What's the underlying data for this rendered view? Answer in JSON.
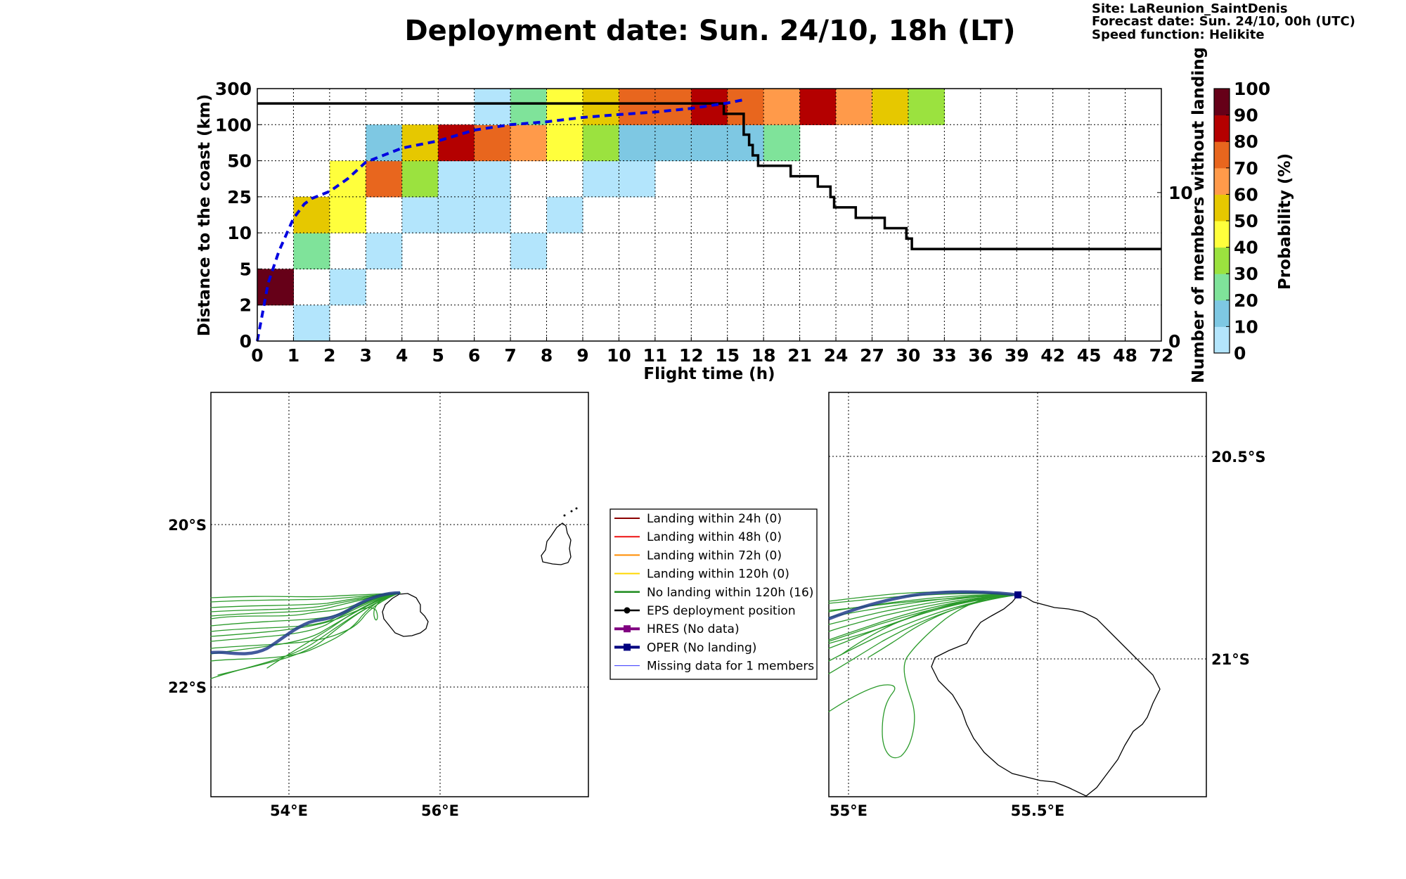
{
  "header": {
    "title": "Deployment date: Sun. 24/10, 18h (LT)",
    "info": [
      "Site: LaReunion_SaintDenis",
      "Forecast date: Sun. 24/10, 00h (UTC)",
      "Speed function: Helikite"
    ]
  },
  "chart_data": [
    {
      "type": "heatmap",
      "xlabel": "Flight time (h)",
      "ylabel": "Distance to the coast (km)",
      "y2label": "Number of members without landing",
      "x_ticks": [
        "0",
        "1",
        "2",
        "3",
        "4",
        "5",
        "6",
        "7",
        "8",
        "9",
        "10",
        "11",
        "12",
        "15",
        "18",
        "21",
        "24",
        "27",
        "30",
        "33",
        "36",
        "39",
        "42",
        "45",
        "48",
        "72"
      ],
      "y_ticks": [
        "0",
        "2",
        "5",
        "10",
        "25",
        "50",
        "100",
        "300"
      ],
      "y2_ticks": [
        "0",
        "10"
      ],
      "y2_range": [
        0,
        17
      ],
      "grid": true,
      "colorbar": {
        "label": "Probability (%)",
        "ticks": [
          "0",
          "10",
          "20",
          "30",
          "40",
          "50",
          "60",
          "70",
          "80",
          "90",
          "100"
        ],
        "colors": [
          "#b3e5fc",
          "#7ec8e3",
          "#7fe39a",
          "#9be23f",
          "#ffff3c",
          "#e6c800",
          "#ff9a4a",
          "#e8661e",
          "#b40000",
          "#660018"
        ]
      },
      "cells": [
        {
          "t": 0,
          "d": 1,
          "p": 95
        },
        {
          "t": 1,
          "d": 0,
          "p": 5
        },
        {
          "t": 1,
          "d": 2,
          "p": 25
        },
        {
          "t": 1,
          "d": 3,
          "p": 55
        },
        {
          "t": 2,
          "d": 1,
          "p": 5
        },
        {
          "t": 2,
          "d": 3,
          "p": 45
        },
        {
          "t": 2,
          "d": 4,
          "p": 45
        },
        {
          "t": 3,
          "d": 2,
          "p": 5
        },
        {
          "t": 3,
          "d": 4,
          "p": 75
        },
        {
          "t": 3,
          "d": 5,
          "p": 15
        },
        {
          "t": 4,
          "d": 3,
          "p": 5
        },
        {
          "t": 4,
          "d": 4,
          "p": 35
        },
        {
          "t": 4,
          "d": 5,
          "p": 55
        },
        {
          "t": 5,
          "d": 3,
          "p": 5
        },
        {
          "t": 5,
          "d": 4,
          "p": 5
        },
        {
          "t": 5,
          "d": 5,
          "p": 85
        },
        {
          "t": 6,
          "d": 3,
          "p": 5
        },
        {
          "t": 6,
          "d": 4,
          "p": 5
        },
        {
          "t": 6,
          "d": 5,
          "p": 75
        },
        {
          "t": 6,
          "d": 6,
          "p": 5
        },
        {
          "t": 7,
          "d": 2,
          "p": 5
        },
        {
          "t": 7,
          "d": 5,
          "p": 65
        },
        {
          "t": 7,
          "d": 6,
          "p": 25
        },
        {
          "t": 8,
          "d": 3,
          "p": 5
        },
        {
          "t": 8,
          "d": 5,
          "p": 45
        },
        {
          "t": 8,
          "d": 6,
          "p": 45
        },
        {
          "t": 9,
          "d": 4,
          "p": 5
        },
        {
          "t": 9,
          "d": 5,
          "p": 35
        },
        {
          "t": 9,
          "d": 6,
          "p": 55
        },
        {
          "t": 10,
          "d": 4,
          "p": 5
        },
        {
          "t": 10,
          "d": 5,
          "p": 15
        },
        {
          "t": 10,
          "d": 6,
          "p": 75
        },
        {
          "t": 11,
          "d": 5,
          "p": 15
        },
        {
          "t": 11,
          "d": 6,
          "p": 75
        },
        {
          "t": 12,
          "d": 5,
          "p": 15
        },
        {
          "t": 12,
          "d": 6,
          "p": 85
        },
        {
          "t": 13,
          "d": 5,
          "p": 15
        },
        {
          "t": 13,
          "d": 6,
          "p": 75
        },
        {
          "t": 14,
          "d": 5,
          "p": 25
        },
        {
          "t": 14,
          "d": 6,
          "p": 65
        },
        {
          "t": 15,
          "d": 6,
          "p": 85
        },
        {
          "t": 16,
          "d": 6,
          "p": 65
        },
        {
          "t": 17,
          "d": 6,
          "p": 55
        },
        {
          "t": 18,
          "d": 6,
          "p": 35
        }
      ],
      "series": [
        {
          "type": "step",
          "color": "#000000",
          "points": [
            [
              0,
              16
            ],
            [
              12.9,
              16
            ],
            [
              12.9,
              15.3
            ],
            [
              13.45,
              15.3
            ],
            [
              13.45,
              13.9
            ],
            [
              13.6,
              13.9
            ],
            [
              13.6,
              13.2
            ],
            [
              13.7,
              13.2
            ],
            [
              13.7,
              12.5
            ],
            [
              13.85,
              12.5
            ],
            [
              13.85,
              11.8
            ],
            [
              14.75,
              11.8
            ],
            [
              14.75,
              11.1
            ],
            [
              15.5,
              11.1
            ],
            [
              15.5,
              10.4
            ],
            [
              15.85,
              10.4
            ],
            [
              15.85,
              9.7
            ],
            [
              15.95,
              9.7
            ],
            [
              15.95,
              9.0
            ],
            [
              16.55,
              9.0
            ],
            [
              16.55,
              8.3
            ],
            [
              17.35,
              8.3
            ],
            [
              17.35,
              7.6
            ],
            [
              17.95,
              7.6
            ],
            [
              17.95,
              6.9
            ],
            [
              18.1,
              6.9
            ],
            [
              18.1,
              6.2
            ],
            [
              25,
              6.2
            ]
          ]
        },
        {
          "type": "dashed",
          "color": "#0000e0",
          "points": [
            [
              0,
              0
            ],
            [
              0.3,
              1.6
            ],
            [
              0.6,
              2.5
            ],
            [
              1,
              3.4
            ],
            [
              1.3,
              3.8
            ],
            [
              1.5,
              3.95
            ],
            [
              2,
              4.15
            ],
            [
              2.5,
              4.5
            ],
            [
              3,
              4.96
            ],
            [
              4,
              5.35
            ],
            [
              5,
              5.55
            ],
            [
              6,
              5.85
            ],
            [
              7,
              6.0
            ],
            [
              8,
              6.08
            ],
            [
              9,
              6.2
            ],
            [
              10,
              6.28
            ],
            [
              11,
              6.35
            ],
            [
              12,
              6.45
            ],
            [
              13,
              6.6
            ],
            [
              13.5,
              6.7
            ]
          ]
        }
      ]
    },
    {
      "type": "map",
      "x_ticks": [
        "54°E",
        "56°E"
      ],
      "y_ticks": [
        "20°S",
        "22°S"
      ],
      "grid": true
    },
    {
      "type": "map",
      "x_ticks": [
        "55°E",
        "55.5°E"
      ],
      "y_ticks": [
        "20.5°S",
        "21°S"
      ],
      "grid": true
    }
  ],
  "legend": {
    "items": [
      {
        "label": "Landing within 24h (0)",
        "color": "#8b0000",
        "marker": "none",
        "width": 2
      },
      {
        "label": "Landing within 48h (0)",
        "color": "#ee1111",
        "marker": "none",
        "width": 2
      },
      {
        "label": "Landing within 72h (0)",
        "color": "#ff8c00",
        "marker": "none",
        "width": 2
      },
      {
        "label": "Landing within 120h (0)",
        "color": "#ffd700",
        "marker": "none",
        "width": 2
      },
      {
        "label": "No landing within 120h (16)",
        "color": "#1e8b1e",
        "marker": "none",
        "width": 2.5
      },
      {
        "label": "EPS deployment position",
        "color": "#000000",
        "marker": "circle",
        "width": 2.5
      },
      {
        "label": "HRES (No data)",
        "color": "#800080",
        "marker": "square",
        "width": 4
      },
      {
        "label": "OPER (No landing)",
        "color": "#000080",
        "marker": "square",
        "width": 4
      },
      {
        "label": "Missing data for 1 members",
        "color": "#3333ff",
        "marker": "none",
        "width": 1
      }
    ]
  }
}
